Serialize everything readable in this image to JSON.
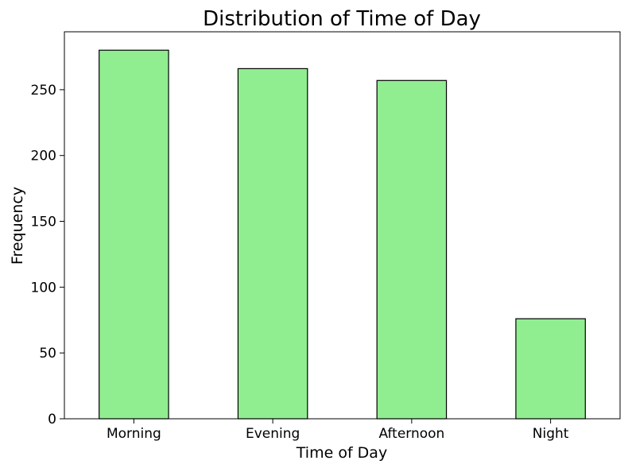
{
  "chart_data": {
    "type": "bar",
    "title": "Distribution of Time of Day",
    "xlabel": "Time of Day",
    "ylabel": "Frequency",
    "categories": [
      "Morning",
      "Evening",
      "Afternoon",
      "Night"
    ],
    "values": [
      280,
      266,
      257,
      76
    ],
    "ylim": [
      0,
      294
    ],
    "yticks": [
      0,
      50,
      100,
      150,
      200,
      250
    ],
    "grid": false,
    "legend": "none",
    "colors": {
      "bar_fill": "#90EE90",
      "bar_edge": "#000000",
      "axes": "#000000",
      "background": "#ffffff"
    }
  }
}
